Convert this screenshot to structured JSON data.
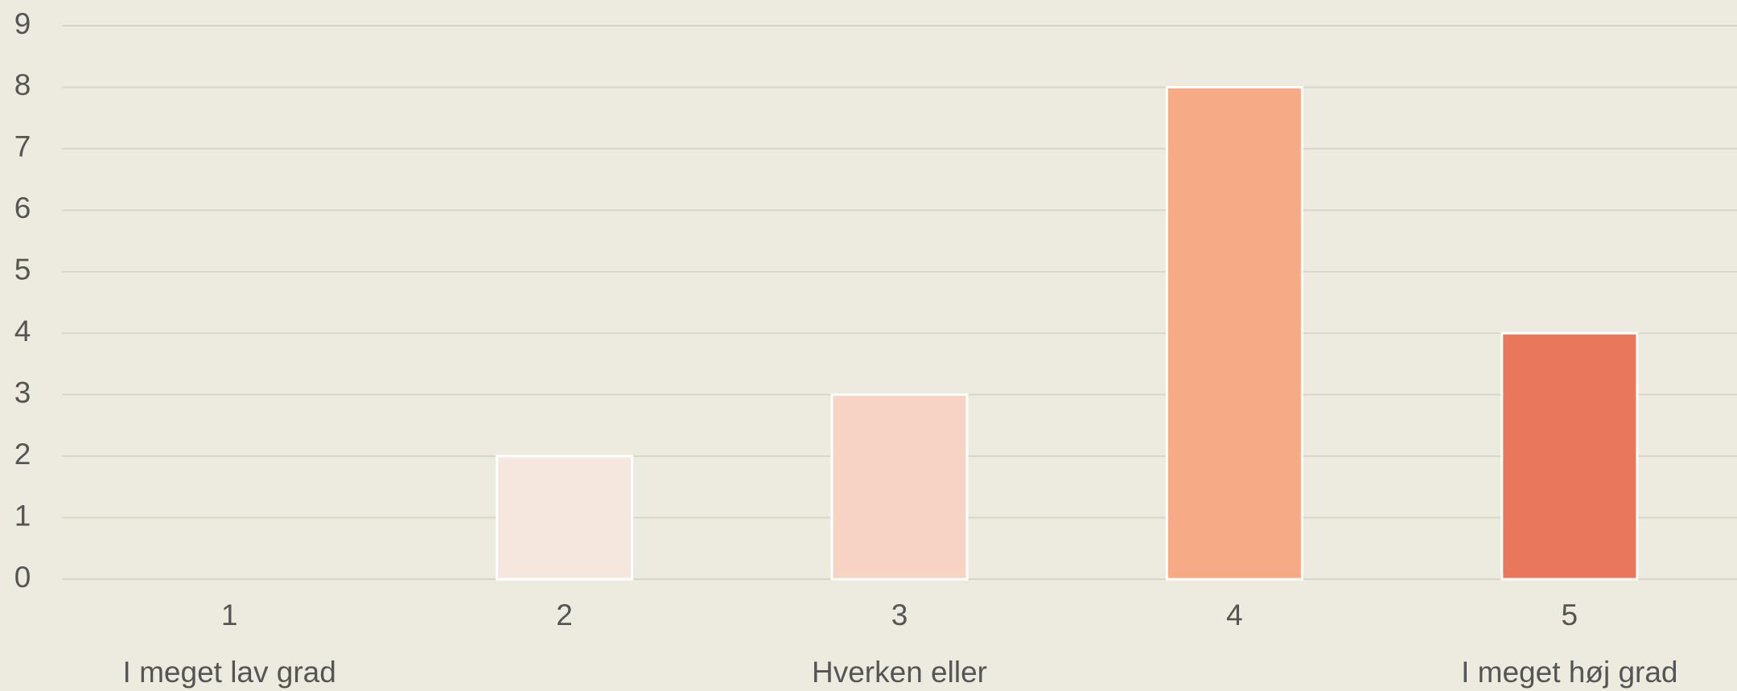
{
  "chart_data": {
    "type": "bar",
    "categories": [
      "1",
      "2",
      "3",
      "4",
      "5"
    ],
    "category_labels": [
      "I meget lav grad",
      null,
      "Hverken eller",
      null,
      "I meget høj grad"
    ],
    "values": [
      0,
      2,
      3,
      8,
      4
    ],
    "colors": [
      "#faf0ea",
      "#f5e6de",
      "#f6d3c3",
      "#f6aa86",
      "#e8775c"
    ],
    "ylim": [
      0,
      9
    ],
    "yticks": [
      0,
      1,
      2,
      3,
      4,
      5,
      6,
      7,
      8,
      9
    ],
    "grid": true
  }
}
